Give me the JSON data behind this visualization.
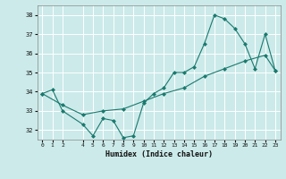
{
  "xlabel": "Humidex (Indice chaleur)",
  "bg_color": "#cceaea",
  "grid_color": "#b0d8d8",
  "line_color": "#1a7a6e",
  "xlim": [
    -0.5,
    23.5
  ],
  "ylim": [
    31.5,
    38.5
  ],
  "xticks": [
    0,
    1,
    2,
    4,
    5,
    6,
    7,
    8,
    9,
    10,
    11,
    12,
    13,
    14,
    15,
    16,
    17,
    18,
    19,
    20,
    21,
    22,
    23
  ],
  "yticks": [
    32,
    33,
    34,
    35,
    36,
    37,
    38
  ],
  "series1_x": [
    0,
    1,
    2,
    4,
    5,
    6,
    7,
    8,
    9,
    10,
    11,
    12,
    13,
    14,
    15,
    16,
    17,
    18,
    19,
    20,
    21,
    22,
    23
  ],
  "series1_y": [
    33.9,
    34.1,
    33.0,
    32.3,
    31.7,
    32.6,
    32.5,
    31.6,
    31.7,
    33.4,
    33.9,
    34.2,
    35.0,
    35.0,
    35.3,
    36.5,
    38.0,
    37.8,
    37.3,
    36.5,
    35.2,
    37.0,
    35.1
  ],
  "series2_x": [
    0,
    2,
    4,
    6,
    8,
    10,
    12,
    14,
    16,
    18,
    20,
    22,
    23
  ],
  "series2_y": [
    33.9,
    33.3,
    32.8,
    33.0,
    33.1,
    33.5,
    33.9,
    34.2,
    34.8,
    35.2,
    35.6,
    35.9,
    35.1
  ]
}
